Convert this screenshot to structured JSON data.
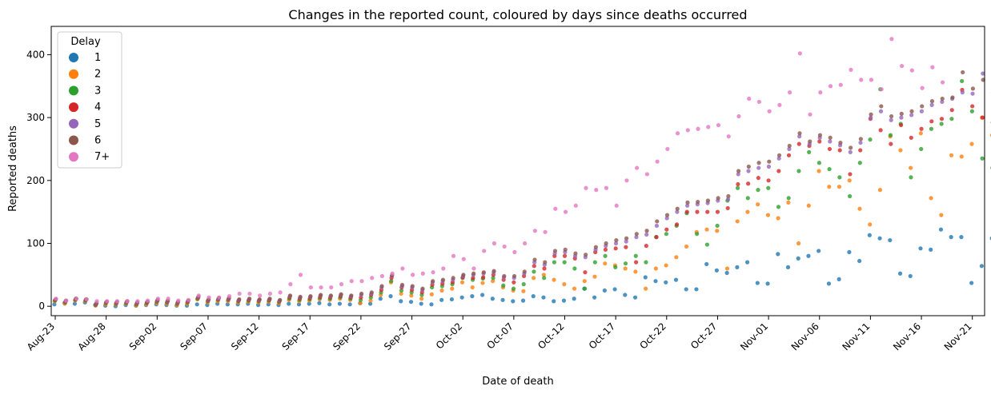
{
  "chart_data": {
    "type": "scatter",
    "title": "Changes in the reported count, coloured by days since deaths occurred",
    "xlabel": "Date of death",
    "ylabel": "Reported deaths",
    "x_start": "Aug-23",
    "x_end": "Nov-22",
    "x_tick_labels": [
      "Aug-23",
      "Aug-28",
      "Sep-02",
      "Sep-07",
      "Sep-12",
      "Sep-17",
      "Sep-22",
      "Sep-27",
      "Oct-02",
      "Oct-07",
      "Oct-12",
      "Oct-17",
      "Oct-22",
      "Oct-27",
      "Nov-01",
      "Nov-06",
      "Nov-11",
      "Nov-16",
      "Nov-21"
    ],
    "ylim": [
      -15,
      445
    ],
    "yticks": [
      0,
      100,
      200,
      300,
      400
    ],
    "grid": false,
    "legend": {
      "title": "Delay",
      "position": "top-left",
      "entries": [
        "1",
        "2",
        "3",
        "4",
        "5",
        "6",
        "7+"
      ]
    },
    "colors": [
      "#1f77b4",
      "#ff7f0e",
      "#2ca02c",
      "#d62728",
      "#9467bd",
      "#8c564b",
      "#e377c2"
    ],
    "series": [
      {
        "name": "1",
        "values": [
          3,
          5,
          4,
          6,
          2,
          1,
          0,
          2,
          1,
          2,
          3,
          2,
          1,
          1,
          3,
          2,
          4,
          3,
          3,
          4,
          2,
          3,
          2,
          4,
          3,
          4,
          5,
          3,
          4,
          3,
          5,
          4,
          12,
          16,
          8,
          7,
          4,
          3,
          10,
          11,
          14,
          16,
          18,
          12,
          10,
          8,
          9,
          16,
          14,
          8,
          9,
          12,
          28,
          14,
          25,
          27,
          18,
          14,
          46,
          40,
          38,
          42,
          27,
          27,
          67,
          57,
          53,
          62,
          70,
          37,
          36,
          83,
          62,
          76,
          80,
          88,
          36,
          43,
          86,
          72,
          113,
          108,
          105,
          52,
          48,
          92,
          90,
          122,
          110,
          110,
          37,
          64,
          108
        ]
      },
      {
        "name": "2",
        "values": [
          8,
          4,
          9,
          8,
          1,
          3,
          3,
          4,
          1,
          3,
          5,
          4,
          2,
          4,
          11,
          6,
          8,
          8,
          6,
          7,
          6,
          7,
          5,
          10,
          8,
          9,
          11,
          10,
          12,
          10,
          5,
          9,
          18,
          38,
          20,
          17,
          12,
          19,
          25,
          28,
          38,
          30,
          37,
          40,
          30,
          25,
          24,
          45,
          50,
          42,
          35,
          28,
          40,
          47,
          68,
          65,
          60,
          55,
          28,
          60,
          65,
          78,
          95,
          118,
          122,
          120,
          60,
          135,
          150,
          162,
          145,
          140,
          165,
          100,
          160,
          215,
          190,
          190,
          200,
          155,
          130,
          185,
          270,
          248,
          220,
          275,
          172,
          145,
          240,
          238,
          258,
          300,
          272,
          205,
          123,
          250,
          280
        ]
      },
      {
        "name": "3",
        "values": [
          9,
          6,
          10,
          9,
          2,
          5,
          4,
          5,
          3,
          5,
          7,
          6,
          4,
          6,
          12,
          8,
          10,
          10,
          8,
          9,
          8,
          9,
          7,
          12,
          10,
          11,
          13,
          12,
          14,
          12,
          10,
          14,
          22,
          40,
          25,
          22,
          18,
          30,
          32,
          35,
          45,
          42,
          44,
          45,
          33,
          28,
          35,
          55,
          45,
          70,
          70,
          60,
          28,
          70,
          80,
          62,
          68,
          80,
          70,
          110,
          115,
          128,
          148,
          115,
          98,
          128,
          168,
          188,
          172,
          185,
          188,
          158,
          172,
          215,
          245,
          228,
          218,
          205,
          175,
          228,
          265,
          345,
          272,
          290,
          205,
          250,
          282,
          290,
          298,
          358,
          310,
          235,
          220,
          338,
          330
        ]
      },
      {
        "name": "4",
        "values": [
          10,
          7,
          11,
          10,
          3,
          6,
          5,
          6,
          4,
          6,
          8,
          7,
          5,
          7,
          13,
          9,
          11,
          11,
          9,
          10,
          9,
          10,
          8,
          14,
          12,
          13,
          15,
          14,
          16,
          14,
          14,
          18,
          26,
          45,
          30,
          26,
          22,
          34,
          36,
          38,
          46,
          45,
          46,
          50,
          42,
          38,
          48,
          64,
          60,
          80,
          80,
          76,
          54,
          86,
          90,
          92,
          94,
          70,
          96,
          110,
          122,
          130,
          150,
          150,
          150,
          150,
          156,
          194,
          195,
          204,
          200,
          215,
          240,
          258,
          255,
          262,
          250,
          248,
          210,
          248,
          298,
          280,
          258,
          288,
          268,
          282,
          294,
          298,
          312,
          344,
          318,
          300,
          292,
          346,
          348
        ]
      },
      {
        "name": "5",
        "values": [
          11,
          8,
          12,
          11,
          4,
          7,
          6,
          7,
          5,
          7,
          9,
          8,
          6,
          8,
          14,
          10,
          12,
          12,
          10,
          11,
          10,
          11,
          9,
          16,
          14,
          15,
          17,
          16,
          18,
          16,
          18,
          20,
          30,
          48,
          32,
          30,
          26,
          38,
          40,
          42,
          48,
          50,
          52,
          54,
          46,
          45,
          52,
          70,
          66,
          84,
          86,
          80,
          78,
          90,
          96,
          100,
          103,
          110,
          114,
          128,
          140,
          150,
          160,
          162,
          164,
          168,
          170,
          210,
          215,
          220,
          222,
          235,
          250,
          270,
          258,
          268,
          262,
          256,
          245,
          260,
          300,
          310,
          296,
          300,
          304,
          310,
          320,
          325,
          330,
          340,
          338,
          370,
          340,
          325,
          350
        ]
      },
      {
        "name": "6",
        "values": [
          11,
          9,
          12,
          11,
          5,
          7,
          7,
          8,
          6,
          7,
          10,
          9,
          7,
          9,
          15,
          11,
          13,
          13,
          11,
          12,
          11,
          12,
          10,
          17,
          15,
          16,
          18,
          17,
          19,
          17,
          20,
          22,
          32,
          49,
          34,
          32,
          28,
          40,
          42,
          45,
          50,
          52,
          54,
          56,
          48,
          48,
          55,
          74,
          70,
          88,
          90,
          84,
          82,
          94,
          100,
          105,
          108,
          115,
          120,
          135,
          145,
          155,
          165,
          166,
          168,
          172,
          175,
          215,
          222,
          228,
          230,
          240,
          255,
          275,
          262,
          272,
          268,
          260,
          252,
          266,
          305,
          318,
          302,
          306,
          310,
          318,
          326,
          330,
          332,
          372,
          346,
          360,
          338,
          356,
          348
        ]
      },
      {
        "name": "7+",
        "values": [
          12,
          9,
          12,
          11,
          8,
          8,
          8,
          8,
          8,
          9,
          12,
          12,
          9,
          10,
          17,
          14,
          14,
          16,
          20,
          20,
          17,
          20,
          22,
          35,
          50,
          30,
          30,
          30,
          35,
          40,
          40,
          45,
          48,
          52,
          60,
          50,
          52,
          54,
          60,
          80,
          75,
          60,
          88,
          100,
          95,
          86,
          100,
          120,
          118,
          155,
          150,
          160,
          188,
          185,
          188,
          160,
          200,
          220,
          210,
          230,
          250,
          275,
          280,
          282,
          285,
          288,
          270,
          302,
          330,
          325,
          310,
          320,
          340,
          402,
          305,
          340,
          350,
          352,
          376,
          360,
          360,
          345,
          425,
          382,
          375,
          347,
          380,
          356
        ]
      }
    ]
  }
}
